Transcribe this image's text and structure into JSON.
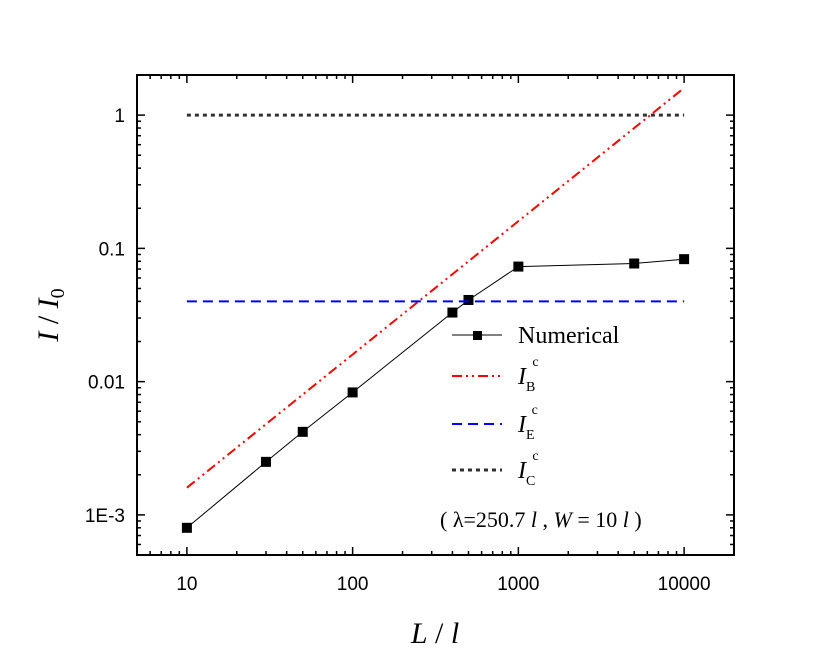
{
  "chart_data": {
    "type": "line",
    "xscale": "log",
    "yscale": "log",
    "xlim": [
      5,
      20000
    ],
    "ylim": [
      0.0005,
      2
    ],
    "xticks": [
      10,
      100,
      1000,
      10000
    ],
    "xtick_labels": [
      "10",
      "100",
      "1000",
      "10000"
    ],
    "yticks": [
      0.001,
      0.01,
      0.1,
      1
    ],
    "ytick_labels": [
      "1E-3",
      "0.01",
      "0.1",
      "1"
    ],
    "xlabel": {
      "main": "L",
      "sep": " / ",
      "unit": "l"
    },
    "ylabel": {
      "main": "I",
      "sep": " / ",
      "unit": "I",
      "sub": "0"
    },
    "series": [
      {
        "name": "Numerical",
        "style": "line-square",
        "color": "#000000",
        "x": [
          10,
          30,
          50,
          100,
          400,
          500,
          1000,
          5000,
          10000
        ],
        "y": [
          0.0008,
          0.0025,
          0.0042,
          0.0083,
          0.033,
          0.041,
          0.073,
          0.077,
          0.083
        ]
      },
      {
        "name": "I_B^c",
        "label_main": "I",
        "label_sub": "B",
        "label_sup": "c",
        "style": "dash-dot-dot",
        "color": "#ff0000",
        "x": [
          10,
          10000
        ],
        "y": [
          0.0016,
          1.6
        ]
      },
      {
        "name": "I_E^c",
        "label_main": "I",
        "label_sub": "E",
        "label_sup": "c",
        "style": "dash",
        "color": "#0000ff",
        "x": [
          10,
          10000
        ],
        "y": [
          0.04,
          0.04
        ]
      },
      {
        "name": "I_C^c",
        "label_main": "I",
        "label_sub": "C",
        "label_sup": "c",
        "style": "dot",
        "color": "#333333",
        "x": [
          10,
          10000
        ],
        "y": [
          1,
          1
        ]
      }
    ],
    "legend_placement": "bottom-right",
    "annotation": {
      "open": "( λ=250.7 ",
      "l1": "l",
      "comma": " , ",
      "W": "W",
      "eq": " = 10 ",
      "l2": "l",
      "close": " )"
    }
  }
}
